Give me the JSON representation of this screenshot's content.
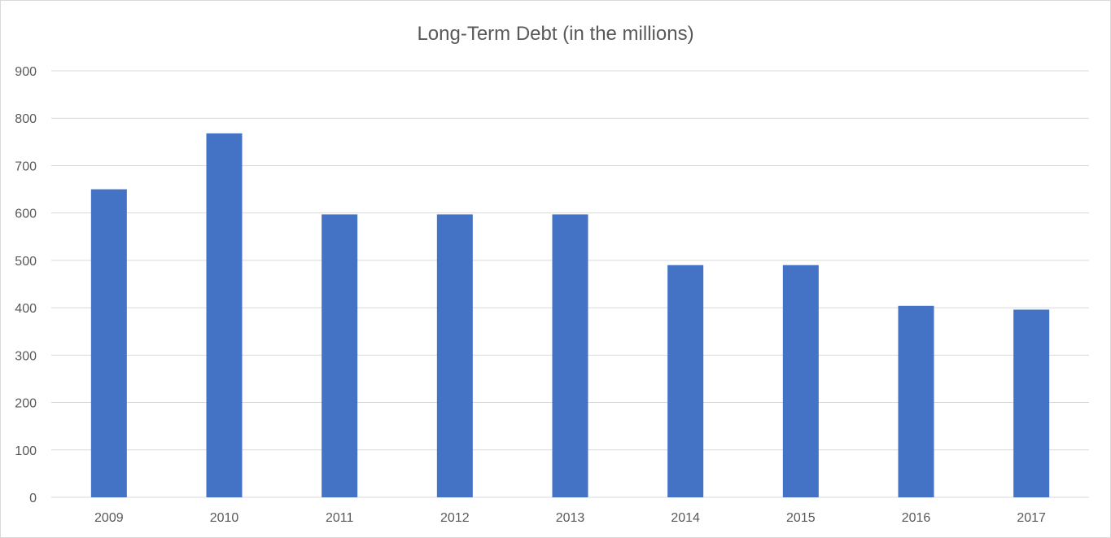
{
  "chart_data": {
    "type": "bar",
    "title": "Long-Term Debt (in the millions)",
    "xlabel": "",
    "ylabel": "",
    "categories": [
      "2009",
      "2010",
      "2011",
      "2012",
      "2013",
      "2014",
      "2015",
      "2016",
      "2017"
    ],
    "series": [
      {
        "values": [
          650,
          768,
          597,
          597,
          597,
          490,
          490,
          404,
          396
        ],
        "color": "#4472c4"
      }
    ],
    "ylim": [
      0,
      900
    ],
    "yticks": [
      0,
      100,
      200,
      300,
      400,
      500,
      600,
      700,
      800,
      900
    ],
    "grid": true,
    "legend": "none"
  }
}
